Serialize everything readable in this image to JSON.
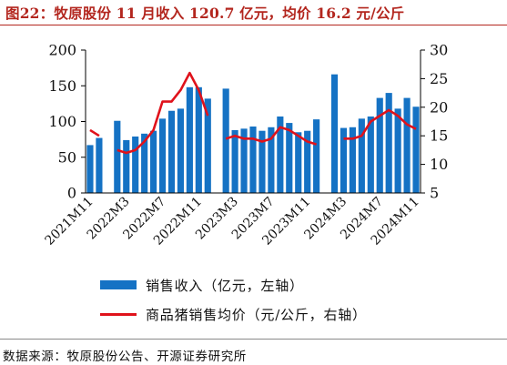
{
  "title": "图22：牧原股份 11 月收入 120.7 亿元，均价 16.2 元/公斤",
  "source": "数据来源：牧原股份公告、开源证券研究所",
  "colors": {
    "bar": "#1572c4",
    "line": "#e0121b",
    "title": "#b3261e"
  },
  "chart_data": {
    "type": "bar+line",
    "left_axis": {
      "ylim": [
        0,
        200
      ],
      "ticks": [
        "0",
        "50",
        "100",
        "150",
        "200"
      ]
    },
    "right_axis": {
      "ylim": [
        5,
        30
      ],
      "ticks": [
        "5",
        "10",
        "15",
        "20",
        "25",
        "30"
      ]
    },
    "x_tick_labels": [
      "2021M11",
      "2022M3",
      "2022M7",
      "2022M11",
      "2023M3",
      "2023M7",
      "2023M11",
      "2024M3",
      "2024M7",
      "2024M11"
    ],
    "x_tick_index": [
      0,
      4,
      8,
      12,
      16,
      20,
      24,
      28,
      32,
      36
    ],
    "categories": [
      "2021M11",
      "2021M12",
      "2022M1",
      "2022M2",
      "2022M3",
      "2022M4",
      "2022M5",
      "2022M6",
      "2022M7",
      "2022M8",
      "2022M9",
      "2022M10",
      "2022M11",
      "2022M12",
      "2023M1",
      "2023M2",
      "2023M3",
      "2023M4",
      "2023M5",
      "2023M6",
      "2023M7",
      "2023M8",
      "2023M9",
      "2023M10",
      "2023M11",
      "2023M12",
      "2024M1",
      "2024M2",
      "2024M3",
      "2024M4",
      "2024M5",
      "2024M6",
      "2024M7",
      "2024M8",
      "2024M9",
      "2024M10",
      "2024M11"
    ],
    "series": [
      {
        "name": "销售收入（亿元，左轴）",
        "type": "bar",
        "axis": "left",
        "values": [
          67,
          77,
          null,
          101,
          74,
          79,
          83,
          87,
          104,
          115,
          118,
          148,
          148,
          132,
          null,
          146,
          88,
          90,
          93,
          87,
          92,
          107,
          98,
          85,
          87,
          103,
          null,
          166,
          91,
          92,
          104,
          107,
          133,
          140,
          118,
          133,
          120.7
        ]
      },
      {
        "name": "商品猪销售均价（元/公斤，右轴）",
        "type": "line",
        "axis": "right",
        "values": [
          16,
          15,
          null,
          12.5,
          12,
          12.5,
          14,
          16,
          21,
          21,
          23,
          26,
          23,
          18.5,
          null,
          14.5,
          15,
          14.5,
          14.5,
          14,
          14.5,
          16.5,
          16,
          15,
          14,
          13.5,
          null,
          null,
          14.5,
          14.5,
          15,
          17.5,
          18.5,
          19.5,
          18.5,
          17,
          16.2
        ]
      }
    ],
    "legend_position": "bottom",
    "grid": false
  }
}
